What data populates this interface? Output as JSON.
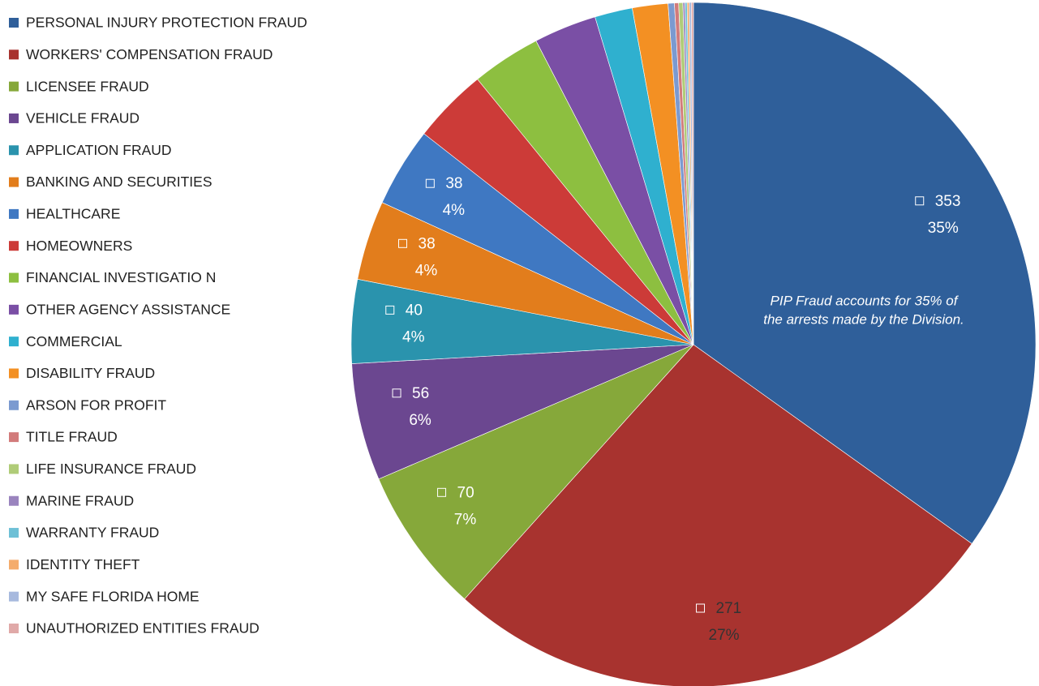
{
  "chart_data": {
    "type": "pie",
    "categories": [
      "PERSONAL INJURY PROTECTION FRAUD",
      "WORKERS' COMPENSATION FRAUD",
      "LICENSEE FRAUD",
      "VEHICLE FRAUD",
      "APPLICATION FRAUD",
      "BANKING AND SECURITIES",
      "HEALTHCARE",
      "HOMEOWNERS",
      "FINANCIAL INVESTIGATIO N",
      "OTHER AGENCY ASSISTANCE",
      "COMMERCIAL",
      "DISABILITY FRAUD",
      "ARSON FOR PROFIT",
      "TITLE FRAUD",
      "LIFE INSURANCE  FRAUD",
      "MARINE FRAUD",
      "WARRANTY FRAUD",
      "IDENTITY  THEFT",
      "MY SAFE FLORIDA HOME",
      "UNAUTHORIZED  ENTITIES  FRAUD"
    ],
    "values": [
      353,
      271,
      70,
      56,
      40,
      38,
      38,
      36,
      33,
      30,
      18,
      17,
      3,
      2,
      2,
      1,
      1,
      1,
      1,
      1
    ],
    "value_labels": [
      "353",
      "271",
      "70",
      "56",
      "40",
      "38",
      "38",
      null,
      null,
      null,
      null,
      null,
      null,
      null,
      null,
      null,
      null,
      null,
      null,
      null
    ],
    "percent_labels": [
      "35%",
      "27%",
      "7%",
      "6%",
      "4%",
      "4%",
      "4%",
      null,
      null,
      null,
      null,
      null,
      null,
      null,
      null,
      null,
      null,
      null,
      null,
      null
    ],
    "colors": [
      "#2f5f9a",
      "#a8332f",
      "#86a83a",
      "#6b4790",
      "#2a93ad",
      "#e27d1c",
      "#3f78c2",
      "#cc3b38",
      "#8dbf40",
      "#7a4fa5",
      "#2fb0cf",
      "#f39023",
      "#7b9ad0",
      "#d27b7b",
      "#b0cc78",
      "#9a84be",
      "#6ec0d6",
      "#f4ac6c",
      "#a7b9de",
      "#e0a9a8"
    ],
    "annotation": [
      "PIP Fraud accounts for 35% of",
      "the arrests made by the  Division."
    ],
    "legend": "left"
  }
}
